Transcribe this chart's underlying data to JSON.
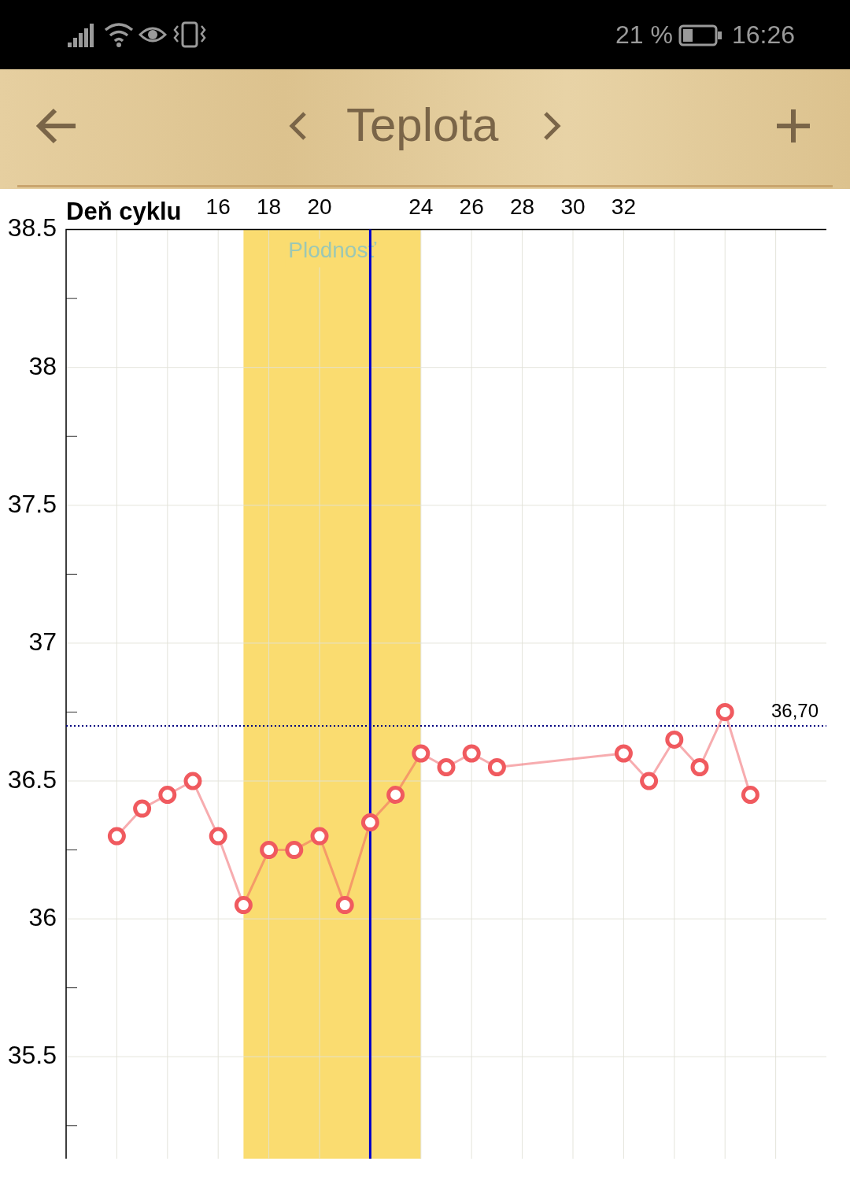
{
  "chart_data": {
    "type": "line",
    "title": "Teplota",
    "xlabel": "Deň cyklu",
    "series": [
      {
        "color": "#f05a5f",
        "x": [
          12,
          13,
          14,
          15,
          16,
          17,
          18,
          19,
          20,
          21,
          22,
          23,
          24,
          25,
          26,
          27,
          32,
          33,
          34,
          35,
          36,
          37
        ],
        "values": [
          36.3,
          36.4,
          36.45,
          36.5,
          36.3,
          36.05,
          36.25,
          36.25,
          36.3,
          36.05,
          36.35,
          36.45,
          36.6,
          36.55,
          36.6,
          36.55,
          36.6,
          36.5,
          36.65,
          36.55,
          36.75,
          36.45
        ]
      }
    ],
    "marker": "circle",
    "grid": true,
    "xlim": [
      10,
      40
    ],
    "xticks": [
      {
        "value": 12,
        "label": null
      },
      {
        "value": 14,
        "label": null
      },
      16,
      18,
      20,
      {
        "value": 22,
        "label": null
      },
      24,
      26,
      28,
      30,
      32,
      {
        "value": 34,
        "label": null
      },
      {
        "value": 36,
        "label": null
      },
      {
        "value": 38,
        "label": null
      }
    ],
    "ylim": [
      35.13,
      38.5
    ],
    "yticks": [
      {
        "value": 35.25,
        "label": null
      },
      35.5,
      {
        "value": 35.75,
        "label": null
      },
      36,
      {
        "value": 36.25,
        "label": null
      },
      36.5,
      {
        "value": 36.75,
        "label": null
      },
      37,
      {
        "value": 37.25,
        "label": null
      },
      37.5,
      {
        "value": 37.75,
        "label": null
      },
      38,
      {
        "value": 38.25,
        "label": null
      },
      38.5
    ],
    "ref_lines": [
      {
        "axis": "y",
        "value": 36.7,
        "label": "36,70",
        "color": "#000080",
        "line_style": "dotted"
      },
      {
        "axis": "x",
        "value": 22,
        "color": "#0000cc",
        "line_style": "solid"
      }
    ],
    "bands": [
      {
        "axis": "x",
        "from": 17,
        "to": 24,
        "label": "Plodnosť",
        "color": "#fadc70"
      }
    ],
    "annotations": [
      "21 %",
      "16:26"
    ]
  }
}
